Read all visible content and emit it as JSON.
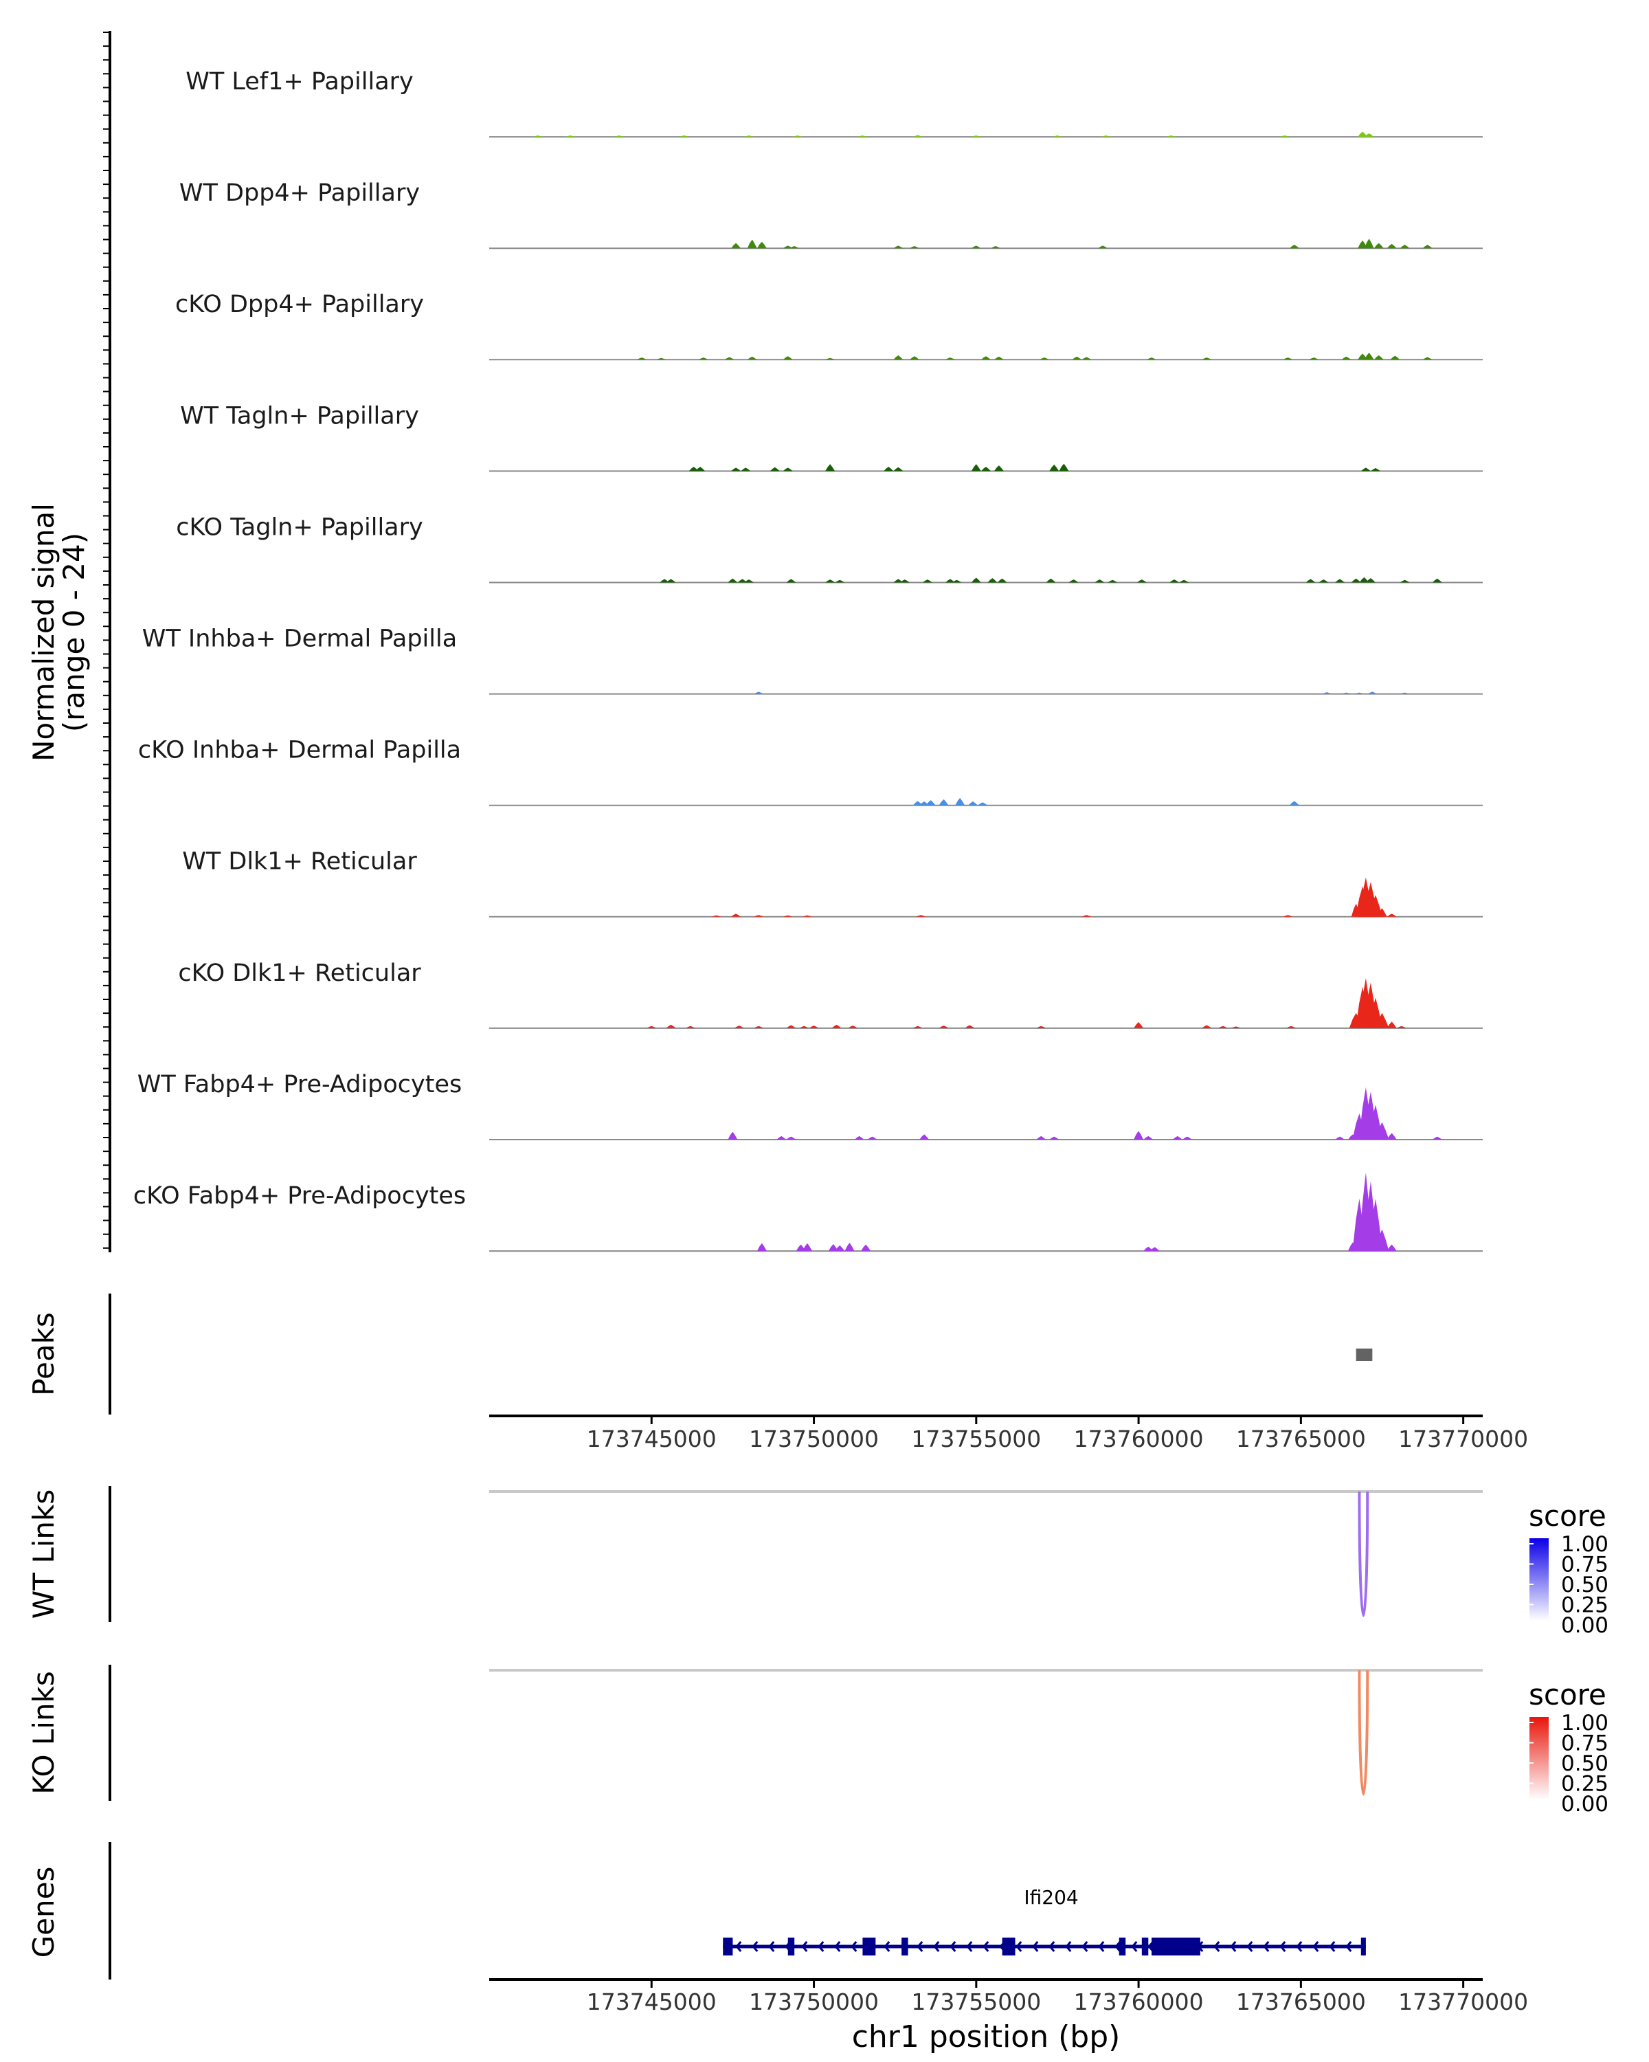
{
  "chart_data": {
    "type": "area",
    "title": "",
    "signal_axis_label_line1": "Normalized signal",
    "signal_axis_label_line2": "(range 0 - 24)",
    "y_range": [
      0,
      24
    ],
    "region": {
      "chrom": "chr1",
      "start": 173740000,
      "end": 173770600
    },
    "x_ticks": [
      173745000,
      173750000,
      173755000,
      173760000,
      173765000,
      173770000
    ],
    "x_tick_labels": [
      "173745000",
      "173750000",
      "173755000",
      "173760000",
      "173765000",
      "173770000"
    ],
    "xlabel": "chr1 position (bp)",
    "tracks": [
      {
        "name": "WT Lef1+ Papillary",
        "color": "#7CC61A",
        "bins": [
          [
            173741500,
            0.3
          ],
          [
            173742500,
            0.2
          ],
          [
            173744000,
            0.3
          ],
          [
            173746000,
            0.2
          ],
          [
            173748000,
            0.3
          ],
          [
            173749500,
            0.2
          ],
          [
            173751500,
            0.3
          ],
          [
            173753200,
            0.4
          ],
          [
            173755000,
            0.2
          ],
          [
            173757500,
            0.2
          ],
          [
            173759000,
            0.2
          ],
          [
            173761000,
            0.2
          ],
          [
            173764500,
            0.2
          ],
          [
            173766900,
            1.2
          ],
          [
            173767100,
            0.8
          ]
        ]
      },
      {
        "name": "WT Dpp4+ Papillary",
        "color": "#3F8A0C",
        "bins": [
          [
            173747600,
            1.2
          ],
          [
            173748100,
            2.0
          ],
          [
            173748400,
            1.5
          ],
          [
            173749200,
            0.6
          ],
          [
            173749400,
            0.5
          ],
          [
            173752600,
            0.6
          ],
          [
            173753100,
            0.5
          ],
          [
            173755000,
            0.6
          ],
          [
            173755600,
            0.5
          ],
          [
            173758900,
            0.6
          ],
          [
            173764800,
            0.8
          ],
          [
            173766900,
            1.8
          ],
          [
            173767100,
            2.2
          ],
          [
            173767400,
            1.2
          ],
          [
            173767800,
            1.0
          ],
          [
            173768200,
            0.8
          ],
          [
            173768900,
            0.8
          ]
        ]
      },
      {
        "name": "cKO Dpp4+ Papillary",
        "color": "#3F8A0C",
        "bins": [
          [
            173744700,
            0.5
          ],
          [
            173745300,
            0.4
          ],
          [
            173746600,
            0.5
          ],
          [
            173747400,
            0.6
          ],
          [
            173748100,
            0.7
          ],
          [
            173749200,
            0.8
          ],
          [
            173750500,
            0.4
          ],
          [
            173752600,
            1.0
          ],
          [
            173753100,
            0.8
          ],
          [
            173754200,
            0.5
          ],
          [
            173755300,
            0.8
          ],
          [
            173755700,
            0.7
          ],
          [
            173757100,
            0.5
          ],
          [
            173758100,
            0.7
          ],
          [
            173758400,
            0.6
          ],
          [
            173760400,
            0.5
          ],
          [
            173762100,
            0.5
          ],
          [
            173764600,
            0.5
          ],
          [
            173765400,
            0.5
          ],
          [
            173766400,
            0.7
          ],
          [
            173766900,
            1.4
          ],
          [
            173767100,
            1.6
          ],
          [
            173767400,
            1.0
          ],
          [
            173767900,
            0.9
          ],
          [
            173768900,
            0.6
          ]
        ]
      },
      {
        "name": "WT Tagln+ Papillary",
        "color": "#1B5E0A",
        "bins": [
          [
            173746300,
            1.0
          ],
          [
            173746500,
            1.0
          ],
          [
            173747600,
            0.8
          ],
          [
            173747900,
            0.8
          ],
          [
            173748800,
            0.9
          ],
          [
            173749200,
            0.8
          ],
          [
            173750500,
            1.6
          ],
          [
            173752300,
            1.0
          ],
          [
            173752600,
            0.9
          ],
          [
            173755000,
            1.6
          ],
          [
            173755300,
            1.0
          ],
          [
            173755700,
            1.3
          ],
          [
            173757400,
            1.5
          ],
          [
            173757700,
            1.7
          ],
          [
            173767000,
            0.8
          ],
          [
            173767300,
            0.7
          ]
        ]
      },
      {
        "name": "cKO Tagln+ Papillary",
        "color": "#1B5E0A",
        "bins": [
          [
            173745400,
            0.8
          ],
          [
            173745600,
            0.8
          ],
          [
            173747500,
            0.9
          ],
          [
            173747800,
            0.8
          ],
          [
            173748000,
            0.7
          ],
          [
            173749300,
            0.8
          ],
          [
            173750500,
            0.7
          ],
          [
            173750800,
            0.6
          ],
          [
            173752600,
            0.8
          ],
          [
            173752800,
            0.7
          ],
          [
            173753500,
            0.7
          ],
          [
            173754200,
            0.8
          ],
          [
            173754400,
            0.6
          ],
          [
            173755000,
            1.1
          ],
          [
            173755500,
            1.0
          ],
          [
            173755800,
            0.9
          ],
          [
            173757300,
            0.9
          ],
          [
            173758000,
            0.7
          ],
          [
            173758800,
            0.7
          ],
          [
            173759200,
            0.6
          ],
          [
            173760100,
            0.7
          ],
          [
            173761100,
            0.7
          ],
          [
            173761400,
            0.6
          ],
          [
            173765300,
            0.8
          ],
          [
            173765700,
            0.7
          ],
          [
            173766200,
            0.8
          ],
          [
            173766700,
            0.9
          ],
          [
            173766950,
            1.2
          ],
          [
            173767150,
            1.0
          ],
          [
            173768200,
            0.6
          ],
          [
            173769200,
            0.9
          ]
        ]
      },
      {
        "name": "WT Inhba+ Dermal Papilla",
        "color": "#4A90E2",
        "bins": [
          [
            173748300,
            0.5
          ],
          [
            173765800,
            0.4
          ],
          [
            173766400,
            0.3
          ],
          [
            173766800,
            0.3
          ],
          [
            173767200,
            0.5
          ],
          [
            173768200,
            0.3
          ]
        ]
      },
      {
        "name": "cKO Inhba+ Dermal Papilla",
        "color": "#4A90E2",
        "bins": [
          [
            173753200,
            1.0
          ],
          [
            173753400,
            0.9
          ],
          [
            173753600,
            1.2
          ],
          [
            173754000,
            1.4
          ],
          [
            173754500,
            1.7
          ],
          [
            173754900,
            0.9
          ],
          [
            173755200,
            0.7
          ],
          [
            173764800,
            1.0
          ]
        ]
      },
      {
        "name": "WT Dlk1+ Reticular",
        "color": "#E8261A",
        "bins": [
          [
            173747000,
            0.3
          ],
          [
            173747600,
            0.7
          ],
          [
            173748300,
            0.4
          ],
          [
            173749200,
            0.3
          ],
          [
            173749800,
            0.3
          ],
          [
            173753300,
            0.4
          ],
          [
            173758400,
            0.4
          ],
          [
            173764600,
            0.4
          ],
          [
            173766700,
            3.0
          ],
          [
            173766900,
            7.0
          ],
          [
            173767000,
            9.0
          ],
          [
            173767150,
            8.0
          ],
          [
            173767300,
            5.0
          ],
          [
            173767500,
            2.0
          ],
          [
            173767800,
            0.7
          ]
        ]
      },
      {
        "name": "cKO Dlk1+ Reticular",
        "color": "#E8261A",
        "bins": [
          [
            173745000,
            0.5
          ],
          [
            173745600,
            0.8
          ],
          [
            173746200,
            0.5
          ],
          [
            173747700,
            0.6
          ],
          [
            173748300,
            0.5
          ],
          [
            173749300,
            0.7
          ],
          [
            173749700,
            0.5
          ],
          [
            173750000,
            0.6
          ],
          [
            173750700,
            0.8
          ],
          [
            173751200,
            0.6
          ],
          [
            173753200,
            0.5
          ],
          [
            173754000,
            0.6
          ],
          [
            173754800,
            0.7
          ],
          [
            173757000,
            0.5
          ],
          [
            173760000,
            1.4
          ],
          [
            173762100,
            0.7
          ],
          [
            173762600,
            0.5
          ],
          [
            173763000,
            0.4
          ],
          [
            173764700,
            0.5
          ],
          [
            173766700,
            3.5
          ],
          [
            173766900,
            9.5
          ],
          [
            173767000,
            11.5
          ],
          [
            173767150,
            10.5
          ],
          [
            173767300,
            7.0
          ],
          [
            173767500,
            3.5
          ],
          [
            173767800,
            1.5
          ],
          [
            173768100,
            0.5
          ]
        ]
      },
      {
        "name": "WT Fabp4+ Pre-Adipocytes",
        "color": "#A43CE8",
        "bins": [
          [
            173747500,
            1.8
          ],
          [
            173749000,
            0.8
          ],
          [
            173749300,
            0.7
          ],
          [
            173751400,
            0.8
          ],
          [
            173751800,
            0.7
          ],
          [
            173753400,
            1.2
          ],
          [
            173757000,
            0.8
          ],
          [
            173757400,
            0.7
          ],
          [
            173760000,
            2.0
          ],
          [
            173760300,
            0.8
          ],
          [
            173761200,
            0.8
          ],
          [
            173761500,
            0.7
          ],
          [
            173766200,
            0.7
          ],
          [
            173766600,
            1.2
          ],
          [
            173766800,
            6.0
          ],
          [
            173767000,
            12.0
          ],
          [
            173767150,
            11.0
          ],
          [
            173767300,
            8.0
          ],
          [
            173767500,
            4.0
          ],
          [
            173767800,
            1.5
          ],
          [
            173769200,
            0.7
          ]
        ]
      },
      {
        "name": "cKO Fabp4+ Pre-Adipocytes",
        "color": "#A43CE8",
        "bins": [
          [
            173748400,
            1.8
          ],
          [
            173749600,
            1.5
          ],
          [
            173749800,
            1.8
          ],
          [
            173750600,
            1.6
          ],
          [
            173750800,
            1.3
          ],
          [
            173751100,
            1.9
          ],
          [
            173751600,
            1.5
          ],
          [
            173760300,
            1.0
          ],
          [
            173760500,
            0.9
          ],
          [
            173766600,
            2.0
          ],
          [
            173766800,
            12.0
          ],
          [
            173767000,
            18.0
          ],
          [
            173767150,
            16.0
          ],
          [
            173767300,
            12.0
          ],
          [
            173767500,
            5.0
          ],
          [
            173767800,
            1.5
          ]
        ]
      }
    ],
    "peaks": {
      "label": "Peaks",
      "intervals": [
        [
          173766700,
          173767200
        ]
      ],
      "color": "#636363"
    },
    "links": [
      {
        "label": "WT Links",
        "anchor_start": 173766800,
        "anchor_end": 173767050,
        "score": 0.55,
        "legend_title": "score",
        "legend_colors": [
          "#ffffff",
          "#0b00e6"
        ],
        "arc_color": "#9F6EF0"
      },
      {
        "label": "KO Links",
        "anchor_start": 173766800,
        "anchor_end": 173767050,
        "score": 0.55,
        "legend_title": "score",
        "legend_colors": [
          "#ffffff",
          "#e8160c"
        ],
        "arc_color": "#F08A62"
      }
    ],
    "legend_ticks": [
      "1.00",
      "0.75",
      "0.50",
      "0.25",
      "0.00"
    ],
    "genes_label": "Genes",
    "genes": [
      {
        "name": "Ifi204",
        "strand": "-",
        "start": 173747200,
        "end": 173767000,
        "color": "#00008B",
        "exons": [
          [
            173747200,
            173747500
          ],
          [
            173749200,
            173749400
          ],
          [
            173751500,
            173751900
          ],
          [
            173752700,
            173752900
          ],
          [
            173755800,
            173756200
          ],
          [
            173759400,
            173759600
          ],
          [
            173760100,
            173760300
          ],
          [
            173760400,
            173761900
          ],
          [
            173766850,
            173767000
          ]
        ]
      }
    ]
  }
}
